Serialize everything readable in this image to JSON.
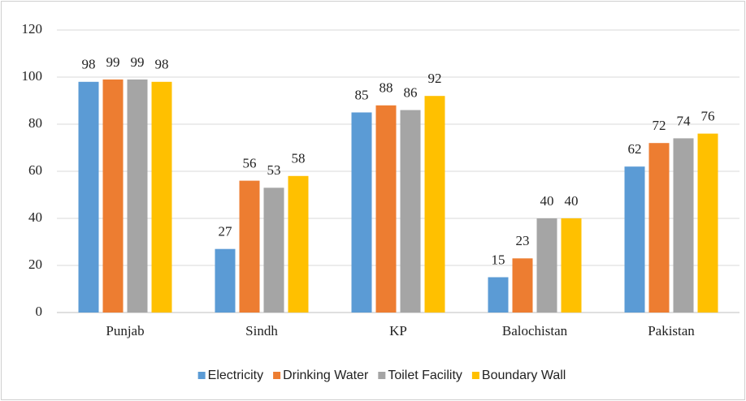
{
  "chart_data": {
    "type": "bar",
    "categories": [
      "Punjab",
      "Sindh",
      "KP",
      "Balochistan",
      "Pakistan"
    ],
    "series": [
      {
        "name": "Electricity",
        "color": "#5b9bd5",
        "values": [
          98,
          27,
          85,
          15,
          62
        ]
      },
      {
        "name": "Drinking Water",
        "color": "#ed7d31",
        "values": [
          99,
          56,
          88,
          23,
          72
        ]
      },
      {
        "name": "Toilet Facility",
        "color": "#a5a5a5",
        "values": [
          99,
          53,
          86,
          40,
          74
        ]
      },
      {
        "name": "Boundary Wall",
        "color": "#ffc000",
        "values": [
          98,
          58,
          92,
          40,
          76
        ]
      }
    ],
    "ylim": [
      0,
      120
    ],
    "yticks": [
      0,
      20,
      40,
      60,
      80,
      100,
      120
    ],
    "grid": true,
    "legend": "bottom"
  }
}
